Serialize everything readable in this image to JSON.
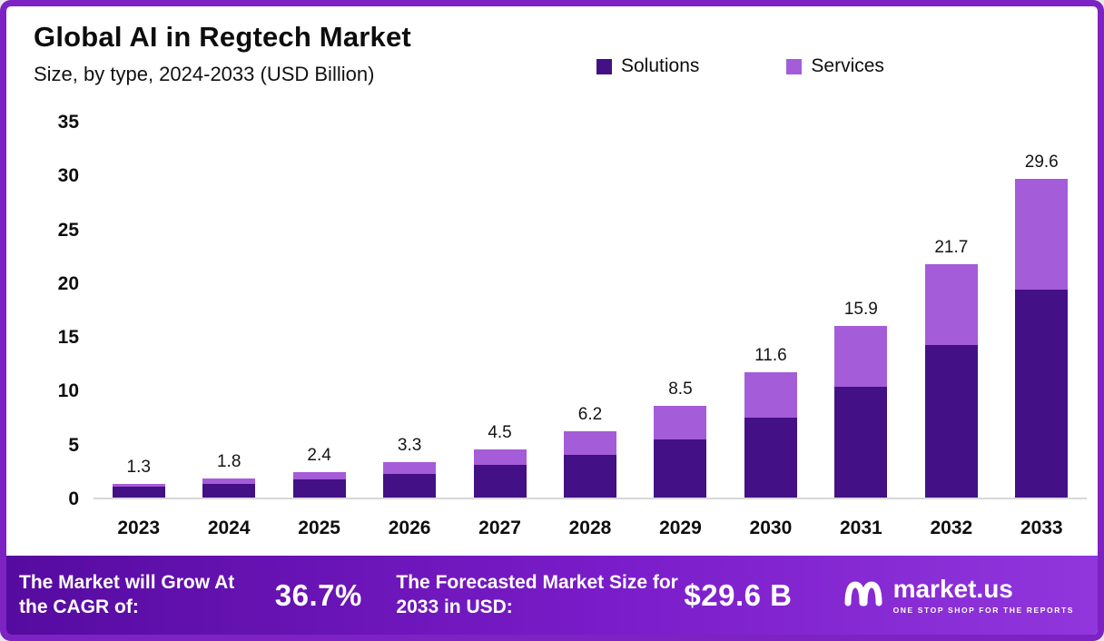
{
  "title": "Global AI in Regtech Market",
  "subtitle": "Size, by type, 2024-2033 (USD Billion)",
  "legend": [
    {
      "label": "Solutions",
      "color": "#431086"
    },
    {
      "label": "Services",
      "color": "#a55cd9"
    }
  ],
  "chart_data": {
    "type": "bar",
    "stacked": true,
    "title": "Global AI in Regtech Market",
    "subtitle": "Size, by type, 2024-2033 (USD Billion)",
    "unit": "USD Billion",
    "categories": [
      "2023",
      "2024",
      "2025",
      "2026",
      "2027",
      "2028",
      "2029",
      "2030",
      "2031",
      "2032",
      "2033"
    ],
    "series": [
      {
        "name": "Solutions",
        "color": "#431086",
        "values": [
          1.0,
          1.3,
          1.7,
          2.2,
          3.0,
          4.0,
          5.4,
          7.4,
          10.3,
          14.2,
          19.3
        ]
      },
      {
        "name": "Services",
        "color": "#a55cd9",
        "values": [
          0.3,
          0.5,
          0.7,
          1.1,
          1.5,
          2.2,
          3.1,
          4.2,
          5.6,
          7.5,
          10.3
        ]
      }
    ],
    "totals": [
      1.3,
      1.8,
      2.4,
      3.3,
      4.5,
      6.2,
      8.5,
      11.6,
      15.9,
      21.7,
      29.6
    ],
    "ylim": [
      0,
      35
    ],
    "yticks": [
      0,
      5,
      10,
      15,
      20,
      25,
      30,
      35
    ],
    "grid": false,
    "legend_position": "top"
  },
  "footer": {
    "cagr_label": "The Market will Grow At the CAGR of:",
    "cagr_value": "36.7%",
    "forecast_label": "The Forecasted Market Size for 2033 in USD:",
    "forecast_value": "$29.6 B",
    "brand": "market.us",
    "brand_tagline": "ONE STOP SHOP FOR THE REPORTS"
  }
}
